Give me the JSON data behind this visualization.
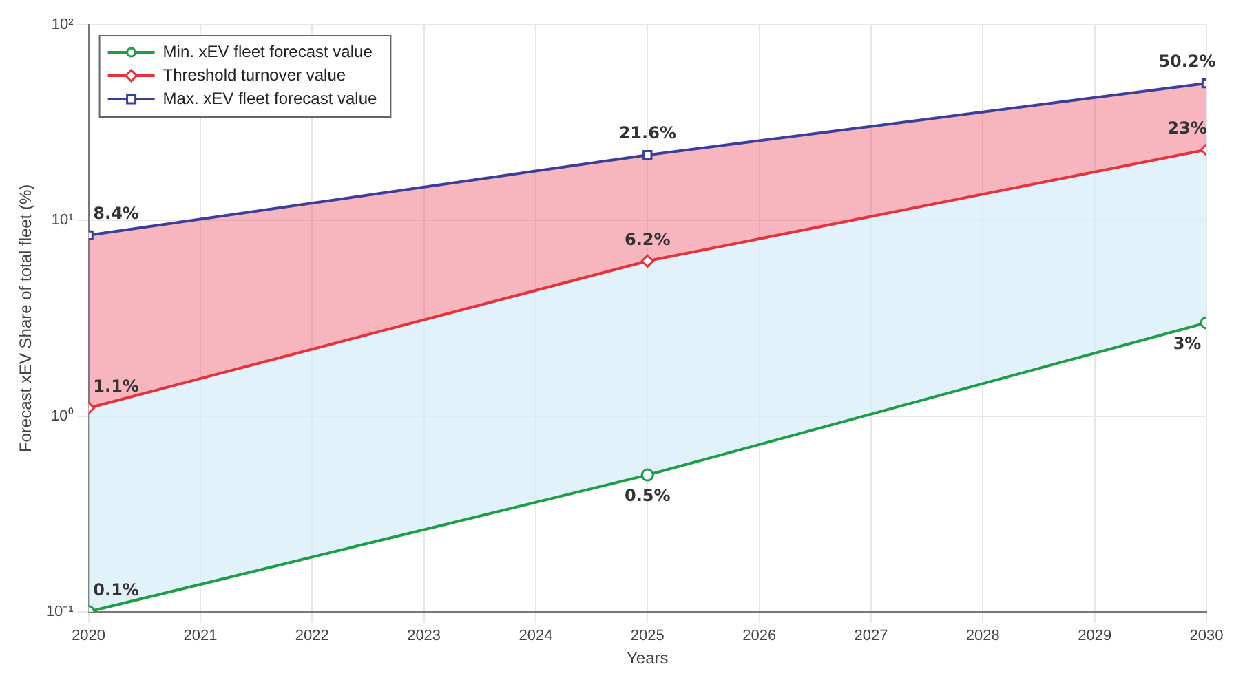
{
  "chart_data": {
    "type": "line",
    "xlabel": "Years",
    "ylabel": "Forecast xEV Share of total fleet (%)",
    "x": [
      2020,
      2025,
      2030
    ],
    "series": [
      {
        "name": "Min. xEV fleet forecast value",
        "color": "#1a9f46",
        "marker": "circle",
        "values": [
          0.1,
          0.5,
          3
        ],
        "value_labels": [
          "0.1%",
          "0.5%",
          "3%"
        ]
      },
      {
        "name": "Threshold turnover value",
        "type": "area",
        "color": "#e8313a",
        "marker": "diamond",
        "values": [
          1.1,
          6.2,
          23
        ],
        "value_labels": [
          "1.1%",
          "6.2%",
          "23%"
        ]
      },
      {
        "name": "Max. xEV fleet forecast value",
        "type": "area",
        "color": "#3b3f9a",
        "marker": "square",
        "values": [
          8.4,
          21.6,
          50.2
        ],
        "value_labels": [
          "8.4%",
          "21.6%",
          "50.2%"
        ]
      }
    ],
    "log": "y",
    "xlim": [
      2020,
      2030
    ],
    "xticks": [
      2020,
      2021,
      2022,
      2023,
      2024,
      2025,
      2026,
      2027,
      2028,
      2029,
      2030
    ],
    "ylim": [
      0.1,
      100
    ],
    "yticks": [
      {
        "value": 0.1,
        "label": "10⁻¹"
      },
      {
        "value": 1,
        "label": "10⁰"
      },
      {
        "value": 10,
        "label": "10¹"
      },
      {
        "value": 100,
        "label": "10²"
      }
    ],
    "grid": true,
    "legend": "top left"
  }
}
